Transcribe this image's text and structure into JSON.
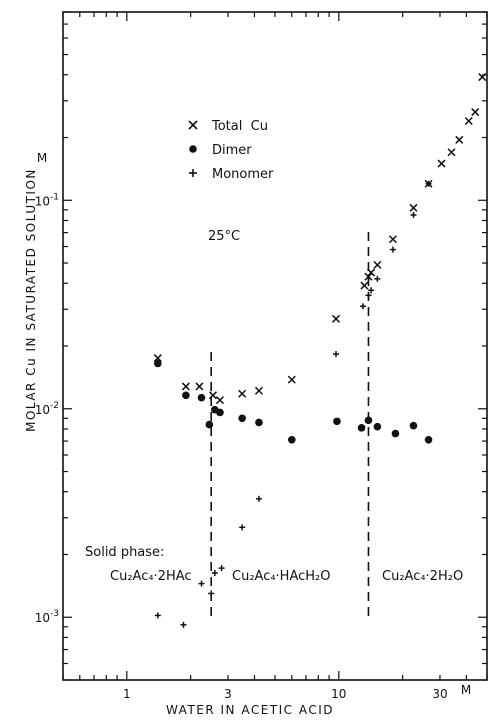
{
  "chart_data": {
    "type": "scatter",
    "xscale": "log",
    "yscale": "log",
    "xlim": [
      0.5,
      50
    ],
    "ylim": [
      0.0005,
      0.8
    ],
    "xlabel": "WATER IN ACETIC ACID",
    "ylabel": "MOLAR Cu IN SATURATED SOLUTION",
    "y_unit_label": "M",
    "x_unit_label": "M",
    "x_ticks": [
      {
        "value": 1,
        "label": "1"
      },
      {
        "value": 3,
        "label": "3"
      },
      {
        "value": 10,
        "label": "10"
      },
      {
        "value": 30,
        "label": "30"
      }
    ],
    "y_ticks": [
      {
        "value": 0.001,
        "label": "10",
        "exp": "-3"
      },
      {
        "value": 0.01,
        "label": "10",
        "exp": "-2"
      },
      {
        "value": 0.1,
        "label": "10",
        "exp": "-1"
      }
    ],
    "temperature": "25°C",
    "legend": [
      {
        "symbol": "cross",
        "label": "Total  Cu"
      },
      {
        "symbol": "dot",
        "label": "Dimer"
      },
      {
        "symbol": "plus",
        "label": "Monomer"
      }
    ],
    "phase_boundaries_x": [
      2.5,
      13.8
    ],
    "phase_title": "Solid phase:",
    "phases": [
      {
        "label": "Cu₂Ac₄·2HAc"
      },
      {
        "label": "Cu₂Ac₄·HAcH₂O"
      },
      {
        "label": "Cu₂Ac₄·2H₂O"
      }
    ],
    "series": [
      {
        "name": "Total  Cu",
        "symbol": "cross",
        "points": [
          [
            1.4,
            0.0175
          ],
          [
            1.9,
            0.0128
          ],
          [
            2.2,
            0.0128
          ],
          [
            2.55,
            0.0116
          ],
          [
            2.75,
            0.011
          ],
          [
            3.5,
            0.0118
          ],
          [
            4.2,
            0.0122
          ],
          [
            6.0,
            0.0138
          ],
          [
            9.7,
            0.027
          ],
          [
            13.2,
            0.039
          ],
          [
            13.8,
            0.043
          ],
          [
            14.2,
            0.045
          ],
          [
            15.2,
            0.049
          ],
          [
            18.0,
            0.065
          ],
          [
            22.5,
            0.092
          ],
          [
            26.5,
            0.12
          ],
          [
            30.5,
            0.15
          ],
          [
            34.0,
            0.17
          ],
          [
            37.0,
            0.195
          ],
          [
            41.0,
            0.24
          ],
          [
            44.0,
            0.265
          ],
          [
            47.5,
            0.39
          ]
        ]
      },
      {
        "name": "Dimer",
        "symbol": "dot",
        "points": [
          [
            1.4,
            0.0165
          ],
          [
            1.9,
            0.0116
          ],
          [
            2.25,
            0.0113
          ],
          [
            2.45,
            0.0084
          ],
          [
            2.6,
            0.0099
          ],
          [
            2.75,
            0.0096
          ],
          [
            3.5,
            0.009
          ],
          [
            4.2,
            0.0086
          ],
          [
            6.0,
            0.0071
          ],
          [
            9.8,
            0.0087
          ],
          [
            12.8,
            0.0081
          ],
          [
            13.8,
            0.0088
          ],
          [
            15.2,
            0.0082
          ],
          [
            18.5,
            0.0076
          ],
          [
            22.5,
            0.0083
          ],
          [
            26.5,
            0.0071
          ]
        ]
      },
      {
        "name": "Monomer",
        "symbol": "plus",
        "points": [
          [
            1.4,
            0.00102
          ],
          [
            1.85,
            0.00092
          ],
          [
            2.25,
            0.00145
          ],
          [
            2.5,
            0.0013
          ],
          [
            2.6,
            0.00163
          ],
          [
            2.8,
            0.00172
          ],
          [
            3.5,
            0.0027
          ],
          [
            4.2,
            0.0037
          ],
          [
            9.7,
            0.0183
          ],
          [
            13.0,
            0.031
          ],
          [
            13.8,
            0.035
          ],
          [
            14.2,
            0.037
          ],
          [
            15.2,
            0.042
          ],
          [
            18.0,
            0.058
          ],
          [
            22.5,
            0.085
          ],
          [
            26.5,
            0.12
          ]
        ]
      }
    ]
  }
}
